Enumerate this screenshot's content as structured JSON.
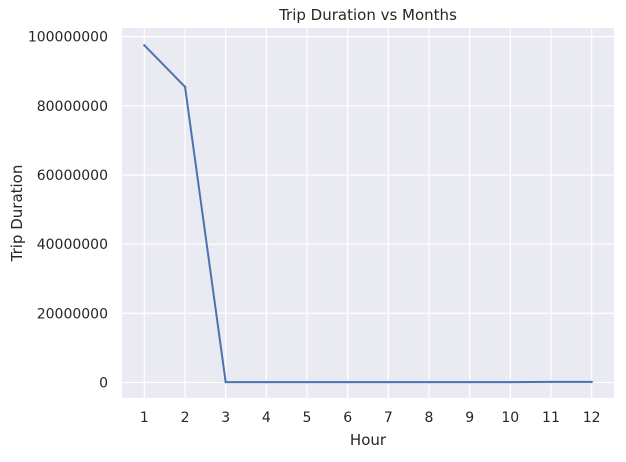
{
  "chart_data": {
    "type": "line",
    "title": "Trip Duration vs Months",
    "xlabel": "Hour",
    "ylabel": "Trip Duration",
    "x": [
      1,
      2,
      3,
      4,
      5,
      6,
      7,
      8,
      9,
      10,
      11,
      12
    ],
    "series": [
      {
        "values": [
          97500000,
          85500000,
          100000,
          100000,
          100000,
          100000,
          100000,
          100000,
          100000,
          100000,
          150000,
          150000
        ],
        "color": "#4c72b0"
      }
    ],
    "xticks": [
      "1",
      "2",
      "3",
      "4",
      "5",
      "6",
      "7",
      "8",
      "9",
      "10",
      "11",
      "12"
    ],
    "yticks": [
      0,
      20000000,
      40000000,
      60000000,
      80000000,
      100000000
    ],
    "ytick_labels": [
      "0",
      "20000000",
      "40000000",
      "60000000",
      "80000000",
      "100000000"
    ],
    "xlim": [
      0.45,
      12.55
    ],
    "ylim": [
      -4500000,
      102500000
    ],
    "grid": true,
    "style": {
      "background": "#eaeaf2",
      "grid_color": "#ffffff"
    }
  }
}
